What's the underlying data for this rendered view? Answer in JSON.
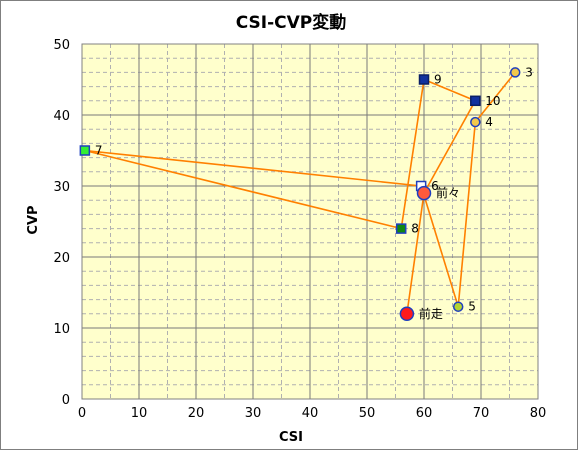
{
  "chart_data": {
    "type": "scatter",
    "title": "CSI-CVP変動",
    "xlabel": "CSI",
    "ylabel": "CVP",
    "xlim": [
      0,
      80
    ],
    "ylim": [
      0,
      50
    ],
    "xticks": [
      0,
      10,
      20,
      30,
      40,
      50,
      60,
      70,
      80
    ],
    "yticks": [
      0,
      10,
      20,
      30,
      40,
      50
    ],
    "grid": true,
    "plot_background": "#ffffcc",
    "line_color": "#ff8000",
    "points": [
      {
        "label": "3",
        "x": 76,
        "y": 46,
        "marker": "circle",
        "fill": "#f2c84b",
        "stroke": "#1f3fbf"
      },
      {
        "label": "4",
        "x": 69,
        "y": 39,
        "marker": "circle",
        "fill": "#f2c84b",
        "stroke": "#1f3fbf"
      },
      {
        "label": "5",
        "x": 66,
        "y": 13,
        "marker": "circle",
        "fill": "#b5d334",
        "stroke": "#1f3fbf"
      },
      {
        "label": "6",
        "x": 59.5,
        "y": 30,
        "marker": "square",
        "fill": "#ffffff",
        "stroke": "#1f3fbf"
      },
      {
        "label": "7",
        "x": 0.5,
        "y": 35,
        "marker": "square",
        "fill": "#33ee33",
        "stroke": "#1f3fbf"
      },
      {
        "label": "8",
        "x": 56,
        "y": 24,
        "marker": "square",
        "fill": "#118811",
        "stroke": "#1f3fbf"
      },
      {
        "label": "9",
        "x": 60,
        "y": 45,
        "marker": "square",
        "fill": "#12329e",
        "stroke": "#0a1f66"
      },
      {
        "label": "10",
        "x": 69,
        "y": 42,
        "marker": "square",
        "fill": "#12329e",
        "stroke": "#0a1f66"
      },
      {
        "label": "前々",
        "x": 60,
        "y": 29,
        "marker": "circle",
        "fill": "#ff5a3c",
        "stroke": "#1f3fbf"
      },
      {
        "label": "前走",
        "x": 57,
        "y": 12,
        "marker": "circle",
        "fill": "#ff1a1a",
        "stroke": "#1f3fbf"
      }
    ],
    "path_order": [
      "3",
      "4",
      "5",
      "6",
      "7",
      "8",
      "9",
      "10",
      "前々",
      "前走"
    ]
  }
}
